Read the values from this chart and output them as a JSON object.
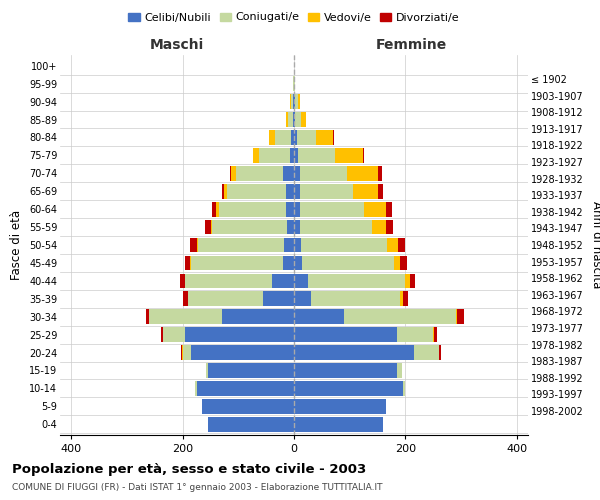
{
  "age_groups": [
    "0-4",
    "5-9",
    "10-14",
    "15-19",
    "20-24",
    "25-29",
    "30-34",
    "35-39",
    "40-44",
    "45-49",
    "50-54",
    "55-59",
    "60-64",
    "65-69",
    "70-74",
    "75-79",
    "80-84",
    "85-89",
    "90-94",
    "95-99",
    "100+"
  ],
  "birth_years": [
    "1998-2002",
    "1993-1997",
    "1988-1992",
    "1983-1987",
    "1978-1982",
    "1973-1977",
    "1968-1972",
    "1963-1967",
    "1958-1962",
    "1953-1957",
    "1948-1952",
    "1943-1947",
    "1938-1942",
    "1933-1937",
    "1928-1932",
    "1923-1927",
    "1918-1922",
    "1913-1917",
    "1908-1912",
    "1903-1907",
    "≤ 1902"
  ],
  "male": {
    "celibi": [
      155,
      165,
      175,
      155,
      185,
      195,
      130,
      55,
      40,
      20,
      18,
      12,
      15,
      15,
      20,
      8,
      5,
      2,
      2,
      0,
      0
    ],
    "coniugati": [
      0,
      0,
      3,
      3,
      15,
      40,
      130,
      135,
      155,
      165,
      155,
      135,
      120,
      105,
      85,
      55,
      30,
      8,
      4,
      1,
      0
    ],
    "vedovi": [
      0,
      0,
      0,
      0,
      1,
      1,
      1,
      1,
      1,
      1,
      2,
      2,
      5,
      5,
      8,
      10,
      10,
      5,
      2,
      0,
      0
    ],
    "divorziati": [
      0,
      0,
      0,
      0,
      1,
      2,
      5,
      8,
      8,
      10,
      12,
      10,
      8,
      5,
      2,
      0,
      0,
      0,
      0,
      0,
      0
    ]
  },
  "female": {
    "nubili": [
      160,
      165,
      195,
      185,
      215,
      185,
      90,
      30,
      25,
      15,
      12,
      10,
      10,
      10,
      10,
      8,
      5,
      2,
      2,
      0,
      0
    ],
    "coniugate": [
      0,
      0,
      5,
      8,
      45,
      65,
      200,
      160,
      175,
      165,
      155,
      130,
      115,
      95,
      85,
      65,
      35,
      10,
      5,
      1,
      0
    ],
    "vedove": [
      0,
      0,
      0,
      0,
      1,
      2,
      3,
      5,
      8,
      10,
      20,
      25,
      40,
      45,
      55,
      50,
      30,
      10,
      3,
      0,
      0
    ],
    "divorziate": [
      0,
      0,
      0,
      0,
      2,
      5,
      12,
      10,
      10,
      12,
      12,
      12,
      10,
      10,
      8,
      2,
      2,
      0,
      0,
      0,
      0
    ]
  },
  "colors": {
    "celibi": "#4472c4",
    "coniugati": "#c5d9a0",
    "vedovi": "#ffc000",
    "divorziati": "#c00000"
  },
  "xlim": 420,
  "title": "Popolazione per età, sesso e stato civile - 2003",
  "subtitle": "COMUNE DI FIUGGI (FR) - Dati ISTAT 1° gennaio 2003 - Elaborazione TUTTITALIA.IT",
  "ylabel_left": "Fasce di età",
  "ylabel_right": "Anni di nascita",
  "xlabel_left": "Maschi",
  "xlabel_right": "Femmine",
  "legend_labels": [
    "Celibi/Nubili",
    "Coniugati/e",
    "Vedovi/e",
    "Divorziati/e"
  ],
  "bg_color": "#ffffff",
  "grid_color": "#cccccc"
}
